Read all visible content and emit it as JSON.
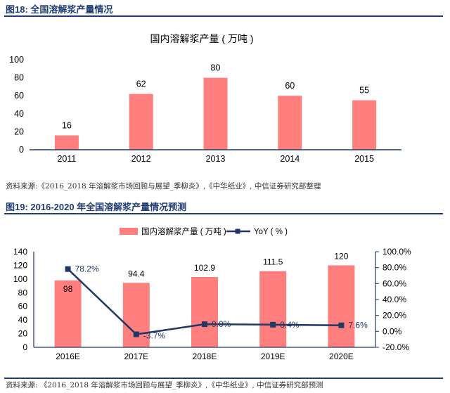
{
  "figures": {
    "fig18": {
      "title": "图18: 全国溶解浆产量情况",
      "source": "资料来源:《2016_2018 年溶解浆市场回顾与展望_季柳炎》,《中华纸业》, 中信证券研究部整理"
    },
    "fig19": {
      "title": "图19: 2016-2020 年全国溶解浆产量情况预测",
      "source": "资料来源: 《2016_2018 年溶解浆市场回顾与展望_季柳炎》,《中华纸业》, 中信证券研究部预测"
    }
  },
  "colors": {
    "bar": "#ff7f7f",
    "line": "#1f3864",
    "axis": "#1f3864",
    "text": "#000000",
    "header": "#1f3c73"
  },
  "chart_data": [
    {
      "type": "bar",
      "title": "国内溶解浆产量 ( 万吨 )",
      "categories": [
        "2011",
        "2012",
        "2013",
        "2014",
        "2015"
      ],
      "values": [
        16,
        62,
        80,
        60,
        55
      ],
      "labels": [
        "16",
        "62",
        "80",
        "60",
        "55"
      ],
      "ylim": [
        0,
        100
      ],
      "yticks": [
        "0",
        "20",
        "40",
        "60",
        "80",
        "100"
      ],
      "xlabel": "",
      "ylabel": ""
    },
    {
      "type": "bar+line",
      "categories": [
        "2016E",
        "2017E",
        "2018E",
        "2019E",
        "2020E"
      ],
      "series": [
        {
          "name": "国内溶解浆产量 ( 万吨 )",
          "type": "bar",
          "axis": "left",
          "values": [
            98,
            94.4,
            102.9,
            111.5,
            120
          ],
          "labels": [
            "98",
            "94.4",
            "102.9",
            "111.5",
            "120"
          ]
        },
        {
          "name": "YoY ( % )",
          "type": "line",
          "axis": "right",
          "values": [
            78.2,
            -3.7,
            9.0,
            8.4,
            7.6
          ],
          "labels": [
            "78.2%",
            "-3.7%",
            "9.0%",
            "8.4%",
            "7.6%"
          ]
        }
      ],
      "ylim_left": [
        0,
        140
      ],
      "yticks_left": [
        "0",
        "20",
        "40",
        "60",
        "80",
        "100",
        "120",
        "140"
      ],
      "ylim_right": [
        -20,
        100
      ],
      "yticks_right": [
        "-20.0%",
        "0.0%",
        "20.0%",
        "40.0%",
        "60.0%",
        "80.0%",
        "100.0%"
      ],
      "legend_position": "top-center"
    }
  ]
}
